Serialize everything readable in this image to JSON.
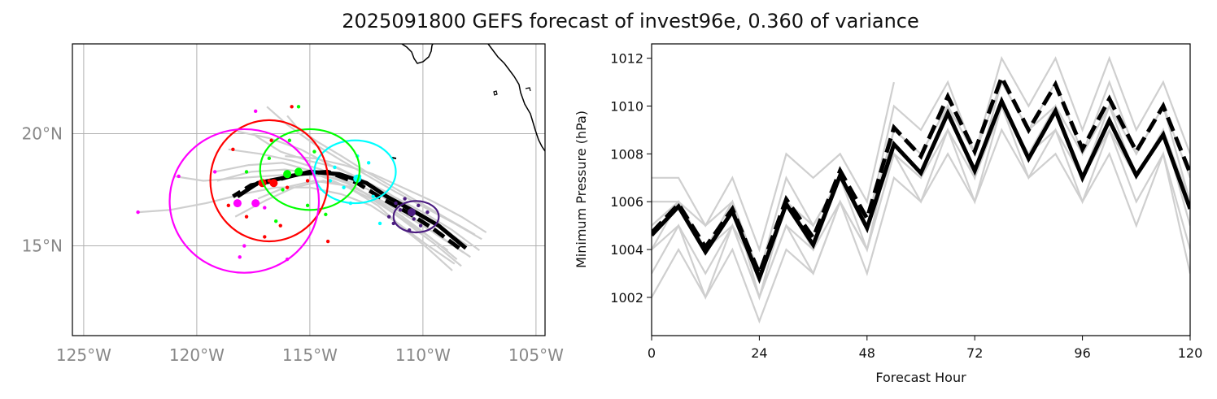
{
  "title": "2025091800 GEFS forecast of invest96e, 0.360 of variance",
  "colors": {
    "member_track": "#cfcfcf",
    "mean_track": "#000000",
    "coast": "#000000",
    "grid": "#b0b0b0",
    "day1": "#4b1c80",
    "day2": "#00ffff",
    "day3": "#00ff00",
    "day4": "#ff0000",
    "day5": "#ff00ff"
  },
  "chart_data": [
    {
      "type": "map",
      "xlim": [
        -125.5,
        -104.6
      ],
      "ylim": [
        11,
        24
      ],
      "x_ticks": [
        -125,
        -120,
        -115,
        -110,
        -105
      ],
      "x_tick_labels": [
        "125°W",
        "120°W",
        "115°W",
        "110°W",
        "105°W"
      ],
      "y_ticks": [
        15,
        20
      ],
      "y_tick_labels": [
        "15°N",
        "20°N"
      ],
      "grid": true,
      "mean_track": [
        [
          -108.1,
          14.9
        ],
        [
          -109.3,
          15.9
        ],
        [
          -110.5,
          16.6
        ],
        [
          -111.6,
          17.2
        ],
        [
          -112.5,
          17.8
        ],
        [
          -113.7,
          18.2
        ],
        [
          -115.0,
          18.3
        ],
        [
          -116.3,
          18.0
        ],
        [
          -117.3,
          17.8
        ],
        [
          -118.2,
          17.2
        ]
      ],
      "mean_track_dashed": [
        [
          -108.4,
          14.9
        ],
        [
          -109.6,
          15.8
        ],
        [
          -110.7,
          16.5
        ],
        [
          -111.8,
          17.1
        ],
        [
          -112.9,
          17.8
        ],
        [
          -114.2,
          18.3
        ],
        [
          -115.5,
          18.2
        ],
        [
          -116.6,
          17.9
        ],
        [
          -117.6,
          17.7
        ],
        [
          -118.4,
          17.2
        ]
      ],
      "ensemble_tracks": [
        [
          [
            -107.5,
            14.8
          ],
          [
            -108.7,
            15.7
          ],
          [
            -110.0,
            16.5
          ],
          [
            -111.3,
            17.2
          ],
          [
            -112.6,
            17.9
          ],
          [
            -113.8,
            18.5
          ],
          [
            -115.1,
            18.8
          ],
          [
            -116.3,
            19.2
          ],
          [
            -117.4,
            19.9
          ]
        ],
        [
          [
            -107.9,
            14.5
          ],
          [
            -109.2,
            15.4
          ],
          [
            -110.5,
            16.2
          ],
          [
            -111.8,
            17.0
          ],
          [
            -113.1,
            17.6
          ],
          [
            -114.4,
            17.9
          ],
          [
            -115.7,
            17.6
          ],
          [
            -117.0,
            17.0
          ],
          [
            -118.3,
            16.3
          ]
        ],
        [
          [
            -108.3,
            14.1
          ],
          [
            -109.5,
            15.1
          ],
          [
            -110.7,
            16.0
          ],
          [
            -111.9,
            16.9
          ],
          [
            -113.1,
            17.7
          ],
          [
            -114.5,
            18.4
          ],
          [
            -115.8,
            18.8
          ],
          [
            -117.2,
            19.1
          ],
          [
            -118.6,
            19.3
          ]
        ],
        [
          [
            -108.7,
            13.9
          ],
          [
            -109.8,
            14.9
          ],
          [
            -110.9,
            15.8
          ],
          [
            -112.0,
            16.8
          ],
          [
            -113.3,
            17.6
          ],
          [
            -114.7,
            18.2
          ],
          [
            -116.1,
            18.4
          ],
          [
            -117.6,
            18.3
          ],
          [
            -119.1,
            17.9
          ]
        ],
        [
          [
            -107.4,
            15.3
          ],
          [
            -108.6,
            16.0
          ],
          [
            -109.9,
            16.7
          ],
          [
            -111.2,
            17.4
          ],
          [
            -112.4,
            18.1
          ],
          [
            -113.6,
            18.8
          ],
          [
            -114.9,
            19.6
          ],
          [
            -116.0,
            20.4
          ],
          [
            -116.9,
            21.2
          ]
        ],
        [
          [
            -108.0,
            15.0
          ],
          [
            -109.2,
            15.8
          ],
          [
            -110.4,
            16.6
          ],
          [
            -111.6,
            17.4
          ],
          [
            -112.8,
            18.0
          ],
          [
            -114.1,
            18.6
          ],
          [
            -115.4,
            19.3
          ],
          [
            -116.8,
            19.8
          ],
          [
            -118.2,
            20.1
          ]
        ],
        [
          [
            -108.5,
            14.4
          ],
          [
            -109.7,
            15.4
          ],
          [
            -110.9,
            16.3
          ],
          [
            -112.1,
            17.1
          ],
          [
            -113.4,
            17.8
          ],
          [
            -114.8,
            18.3
          ],
          [
            -116.2,
            18.7
          ],
          [
            -117.7,
            18.6
          ],
          [
            -119.2,
            18.3
          ]
        ],
        [
          [
            -107.7,
            15.5
          ],
          [
            -108.9,
            16.2
          ],
          [
            -110.1,
            16.9
          ],
          [
            -111.3,
            17.6
          ],
          [
            -112.5,
            18.3
          ],
          [
            -113.6,
            19.0
          ],
          [
            -114.6,
            19.6
          ],
          [
            -115.5,
            20.2
          ],
          [
            -116.0,
            20.8
          ]
        ],
        [
          [
            -108.2,
            14.7
          ],
          [
            -109.4,
            15.5
          ],
          [
            -110.6,
            16.4
          ],
          [
            -111.8,
            17.2
          ],
          [
            -113.0,
            17.8
          ],
          [
            -114.3,
            18.1
          ],
          [
            -115.6,
            18.2
          ],
          [
            -117.0,
            18.1
          ],
          [
            -118.4,
            18.0
          ],
          [
            -119.7,
            17.9
          ],
          [
            -121.0,
            18.1
          ]
        ],
        [
          [
            -108.6,
            14.2
          ],
          [
            -109.9,
            15.1
          ],
          [
            -111.1,
            16.0
          ],
          [
            -112.3,
            16.8
          ],
          [
            -113.6,
            17.3
          ],
          [
            -115.0,
            17.6
          ],
          [
            -116.5,
            17.6
          ],
          [
            -118.0,
            17.3
          ],
          [
            -119.6,
            16.9
          ],
          [
            -121.2,
            16.6
          ],
          [
            -122.6,
            16.5
          ]
        ],
        [
          [
            -107.2,
            15.6
          ],
          [
            -108.3,
            16.3
          ],
          [
            -109.6,
            17.0
          ],
          [
            -110.9,
            17.6
          ],
          [
            -112.2,
            18.2
          ],
          [
            -113.5,
            18.6
          ],
          [
            -114.8,
            18.9
          ],
          [
            -116.1,
            19.0
          ]
        ],
        [
          [
            -108.9,
            14.8
          ],
          [
            -110.0,
            15.6
          ],
          [
            -111.2,
            16.4
          ],
          [
            -112.3,
            17.1
          ],
          [
            -113.5,
            17.7
          ],
          [
            -114.8,
            17.9
          ],
          [
            -116.1,
            17.6
          ],
          [
            -117.3,
            17.1
          ]
        ]
      ],
      "day_points": {
        "day1": [
          [
            -111.0,
            16.6
          ],
          [
            -110.4,
            16.2
          ],
          [
            -111.2,
            16.9
          ],
          [
            -110.1,
            15.9
          ],
          [
            -110.8,
            17.1
          ],
          [
            -111.5,
            16.3
          ],
          [
            -109.8,
            16.5
          ],
          [
            -110.6,
            15.7
          ],
          [
            -111.3,
            16.0
          ],
          [
            -110.2,
            16.8
          ]
        ],
        "day2": [
          [
            -112.8,
            18.1
          ],
          [
            -113.5,
            17.6
          ],
          [
            -112.4,
            18.7
          ],
          [
            -113.9,
            18.5
          ],
          [
            -112.2,
            17.2
          ],
          [
            -114.1,
            17.9
          ],
          [
            -111.9,
            16.0
          ],
          [
            -112.9,
            19.0
          ],
          [
            -113.2,
            16.9
          ]
        ],
        "day3": [
          [
            -115.4,
            18.3
          ],
          [
            -116.2,
            17.5
          ],
          [
            -114.8,
            19.2
          ],
          [
            -115.9,
            19.7
          ],
          [
            -116.8,
            18.9
          ],
          [
            -114.3,
            16.4
          ],
          [
            -115.1,
            16.8
          ],
          [
            -117.8,
            18.3
          ],
          [
            -115.5,
            21.2
          ],
          [
            -116.5,
            16.1
          ]
        ],
        "day4": [
          [
            -116.8,
            17.9
          ],
          [
            -117.3,
            16.9
          ],
          [
            -115.8,
            21.2
          ],
          [
            -118.4,
            19.3
          ],
          [
            -116.3,
            15.9
          ],
          [
            -114.2,
            15.2
          ],
          [
            -117.8,
            16.3
          ],
          [
            -116.0,
            17.6
          ],
          [
            -115.1,
            17.9
          ],
          [
            -118.6,
            16.8
          ],
          [
            -117.0,
            15.4
          ],
          [
            -116.7,
            19.7
          ]
        ],
        "day5": [
          [
            -118.3,
            16.9
          ],
          [
            -120.8,
            18.1
          ],
          [
            -122.6,
            16.5
          ],
          [
            -117.4,
            21.0
          ],
          [
            -117.9,
            15.0
          ],
          [
            -118.1,
            14.5
          ],
          [
            -117.0,
            16.7
          ],
          [
            -119.2,
            18.3
          ],
          [
            -116.0,
            14.4
          ]
        ]
      },
      "day_mean_points": {
        "day1": [
          [
            -110.5,
            16.5
          ]
        ],
        "day2": [
          [
            -112.9,
            18.0
          ]
        ],
        "day3": [
          [
            -115.5,
            18.3
          ],
          [
            -116.0,
            18.2
          ]
        ],
        "day4": [
          [
            -116.6,
            17.8
          ],
          [
            -117.1,
            17.8
          ]
        ],
        "day5": [
          [
            -117.4,
            16.9
          ],
          [
            -118.2,
            16.9
          ]
        ]
      },
      "ellipses": [
        {
          "day": "day1",
          "cx": -110.3,
          "cy": 16.3,
          "rx": 1.0,
          "ry": 0.7
        },
        {
          "day": "day2",
          "cx": -113.0,
          "cy": 18.3,
          "rx": 1.8,
          "ry": 1.4
        },
        {
          "day": "day3",
          "cx": -115.0,
          "cy": 18.4,
          "rx": 2.2,
          "ry": 1.8
        },
        {
          "day": "day4",
          "cx": -116.8,
          "cy": 17.9,
          "rx": 2.6,
          "ry": 2.7
        },
        {
          "day": "day5",
          "cx": -117.9,
          "cy": 17.0,
          "rx": 3.3,
          "ry": 3.2
        }
      ]
    },
    {
      "type": "line",
      "xlabel": "Forecast Hour",
      "ylabel": "Minimum Pressure (hPa)",
      "xlim": [
        0,
        120
      ],
      "ylim": [
        1000.4,
        1012.6
      ],
      "x_ticks": [
        0,
        24,
        48,
        72,
        96,
        120
      ],
      "y_ticks": [
        1002,
        1004,
        1006,
        1008,
        1010,
        1012
      ],
      "x": [
        0,
        6,
        12,
        18,
        24,
        30,
        36,
        42,
        48,
        54,
        60,
        66,
        72,
        78,
        84,
        90,
        96,
        102,
        108,
        114,
        120
      ],
      "members": [
        [
          1007,
          1007,
          1005,
          1007,
          1004,
          1008,
          1007,
          1008,
          1006,
          1011,
          null,
          null,
          null,
          null,
          null,
          null,
          null,
          null,
          null,
          null,
          null
        ],
        [
          1006,
          1006,
          1005,
          1006,
          1003,
          1007,
          1005,
          1007,
          1005,
          1010,
          1009,
          1011,
          1008,
          1012,
          1010,
          1012,
          1009,
          1012,
          1009,
          1011,
          1008
        ],
        [
          1005,
          1006,
          1004,
          1006,
          1003,
          1006,
          1005,
          1007,
          1005,
          1009,
          1008,
          1010,
          1008,
          1011,
          1009,
          1011,
          1008,
          1011,
          1008,
          1010,
          1007
        ],
        [
          1005,
          1006,
          1004,
          1005,
          1003,
          1006,
          1004,
          1007,
          1004,
          1009,
          1008,
          1010,
          1007,
          1011,
          1009,
          1010,
          1008,
          1010,
          1008,
          1010,
          1006
        ],
        [
          1004,
          1006,
          1004,
          1006,
          1002,
          1006,
          1004,
          1007,
          1005,
          1008,
          1007,
          1010,
          1007,
          1010,
          1008,
          1010,
          1007,
          1010,
          1007,
          1009,
          1006
        ],
        [
          1004,
          1005,
          1003,
          1005,
          1002,
          1005,
          1004,
          1006,
          1004,
          1008,
          1007,
          1009,
          1007,
          1010,
          1008,
          1009,
          1007,
          1009,
          1007,
          1009,
          1005
        ],
        [
          1003,
          1005,
          1002,
          1005,
          1002,
          1005,
          1003,
          1006,
          1004,
          1008,
          1006,
          1009,
          1006,
          1010,
          1007,
          1009,
          1006,
          1009,
          1006,
          1008,
          1004
        ],
        [
          1002,
          1004,
          1002,
          1004,
          1001,
          1004,
          1003,
          1006,
          1003,
          1007,
          1006,
          1008,
          1006,
          1009,
          1007,
          1008,
          1006,
          1008,
          1005,
          1008,
          1003
        ]
      ],
      "mean": [
        1004.6,
        1005.8,
        1003.9,
        1005.6,
        1002.8,
        1005.9,
        1004.2,
        1007.1,
        1004.9,
        1008.4,
        1007.2,
        1009.7,
        1007.3,
        1010.2,
        1007.8,
        1009.8,
        1007.0,
        1009.4,
        1007.1,
        1008.8,
        1005.7
      ],
      "dashed": [
        1004.7,
        1005.9,
        1004.1,
        1005.7,
        1003.0,
        1006.1,
        1004.5,
        1007.3,
        1005.3,
        1009.1,
        1007.9,
        1010.4,
        1008.1,
        1011.2,
        1009.0,
        1010.9,
        1008.2,
        1010.3,
        1008.1,
        1010.0,
        1007.2
      ]
    }
  ]
}
